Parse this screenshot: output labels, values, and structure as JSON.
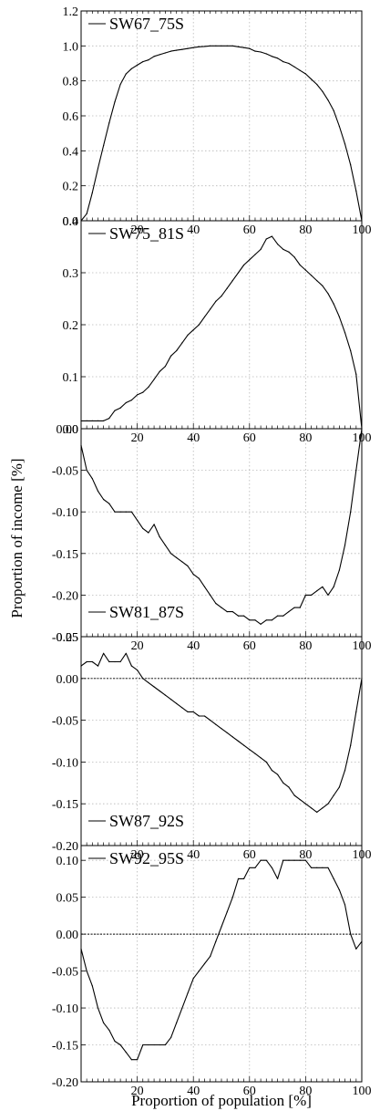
{
  "chart_data": {
    "type": "line",
    "ylabel": "Proportion of income [%]",
    "xlabel": "Proportion of population [%]",
    "xlim": [
      0,
      100
    ],
    "x_ticks": [
      20,
      40,
      60,
      80,
      100
    ],
    "legend_position": "top-left",
    "line_color": "#000000",
    "panels": [
      {
        "series_name": "SW67_75S",
        "ylim": [
          0,
          1.2
        ],
        "y_ticks": [
          0,
          0.2,
          0.4,
          0.6,
          0.8,
          1.0,
          1.2
        ],
        "y_tick_labels": [
          "0.0",
          "0.2",
          "0.4",
          "0.6",
          "0.8",
          "1.0",
          "1.2"
        ],
        "zero_line": false,
        "x": [
          0,
          2,
          4,
          6,
          8,
          10,
          12,
          14,
          16,
          18,
          20,
          22,
          24,
          26,
          28,
          30,
          32,
          34,
          36,
          38,
          40,
          42,
          44,
          46,
          48,
          50,
          52,
          54,
          56,
          58,
          60,
          62,
          64,
          66,
          68,
          70,
          72,
          74,
          76,
          78,
          80,
          82,
          84,
          86,
          88,
          90,
          92,
          94,
          96,
          98,
          100
        ],
        "y": [
          0.0,
          0.04,
          0.16,
          0.3,
          0.43,
          0.56,
          0.68,
          0.78,
          0.84,
          0.87,
          0.89,
          0.91,
          0.92,
          0.94,
          0.95,
          0.96,
          0.97,
          0.975,
          0.98,
          0.985,
          0.99,
          0.995,
          0.997,
          1.0,
          1.0,
          1.0,
          1.0,
          1.0,
          0.995,
          0.99,
          0.985,
          0.97,
          0.965,
          0.955,
          0.94,
          0.93,
          0.91,
          0.9,
          0.88,
          0.86,
          0.84,
          0.81,
          0.78,
          0.74,
          0.69,
          0.63,
          0.54,
          0.44,
          0.32,
          0.17,
          0.0
        ]
      },
      {
        "series_name": "SW75_81S",
        "ylim": [
          0,
          0.4
        ],
        "y_ticks": [
          0,
          0.1,
          0.2,
          0.3,
          0.4
        ],
        "y_tick_labels": [
          "0.0",
          "0.1",
          "0.2",
          "0.3",
          "0.4"
        ],
        "zero_line": false,
        "x": [
          0,
          2,
          4,
          6,
          8,
          10,
          12,
          14,
          16,
          18,
          20,
          22,
          24,
          26,
          28,
          30,
          32,
          34,
          36,
          38,
          40,
          42,
          44,
          46,
          48,
          50,
          52,
          54,
          56,
          58,
          60,
          62,
          64,
          66,
          68,
          70,
          72,
          74,
          76,
          78,
          80,
          82,
          84,
          86,
          88,
          90,
          92,
          94,
          96,
          98,
          100
        ],
        "y": [
          0.015,
          0.015,
          0.015,
          0.015,
          0.015,
          0.02,
          0.035,
          0.04,
          0.05,
          0.055,
          0.065,
          0.07,
          0.08,
          0.095,
          0.11,
          0.12,
          0.14,
          0.15,
          0.165,
          0.18,
          0.19,
          0.2,
          0.215,
          0.23,
          0.245,
          0.255,
          0.27,
          0.285,
          0.3,
          0.315,
          0.325,
          0.335,
          0.345,
          0.365,
          0.37,
          0.355,
          0.345,
          0.34,
          0.33,
          0.315,
          0.305,
          0.295,
          0.285,
          0.275,
          0.26,
          0.24,
          0.215,
          0.185,
          0.15,
          0.105,
          0.0
        ]
      },
      {
        "series_name": "SW81_87S",
        "ylim": [
          -0.25,
          0.0
        ],
        "y_ticks": [
          -0.25,
          -0.2,
          -0.15,
          -0.1,
          -0.05,
          0.0
        ],
        "y_tick_labels": [
          "-0.25",
          "-0.20",
          "-0.15",
          "-0.10",
          "-0.05",
          "0.00"
        ],
        "zero_line": false,
        "x": [
          0,
          2,
          4,
          6,
          8,
          10,
          12,
          14,
          16,
          18,
          20,
          22,
          24,
          26,
          28,
          30,
          32,
          34,
          36,
          38,
          40,
          42,
          44,
          46,
          48,
          50,
          52,
          54,
          56,
          58,
          60,
          62,
          64,
          66,
          68,
          70,
          72,
          74,
          76,
          78,
          80,
          82,
          84,
          86,
          88,
          90,
          92,
          94,
          96,
          98,
          100
        ],
        "y": [
          -0.02,
          -0.05,
          -0.06,
          -0.075,
          -0.085,
          -0.09,
          -0.1,
          -0.1,
          -0.1,
          -0.1,
          -0.11,
          -0.12,
          -0.125,
          -0.115,
          -0.13,
          -0.14,
          -0.15,
          -0.155,
          -0.16,
          -0.165,
          -0.175,
          -0.18,
          -0.19,
          -0.2,
          -0.21,
          -0.215,
          -0.22,
          -0.22,
          -0.225,
          -0.225,
          -0.23,
          -0.23,
          -0.235,
          -0.23,
          -0.23,
          -0.225,
          -0.225,
          -0.22,
          -0.215,
          -0.215,
          -0.2,
          -0.2,
          -0.195,
          -0.19,
          -0.2,
          -0.19,
          -0.17,
          -0.14,
          -0.1,
          -0.05,
          0.0
        ]
      },
      {
        "series_name": "SW87_92S",
        "ylim": [
          -0.2,
          0.05
        ],
        "y_ticks": [
          -0.2,
          -0.15,
          -0.1,
          -0.05,
          0.0,
          0.05
        ],
        "y_tick_labels": [
          "-0.20",
          "-0.15",
          "-0.10",
          "-0.05",
          "0.00",
          "0.05"
        ],
        "zero_line": true,
        "x": [
          0,
          2,
          4,
          6,
          8,
          10,
          12,
          14,
          16,
          18,
          20,
          22,
          24,
          26,
          28,
          30,
          32,
          34,
          36,
          38,
          40,
          42,
          44,
          46,
          48,
          50,
          52,
          54,
          56,
          58,
          60,
          62,
          64,
          66,
          68,
          70,
          72,
          74,
          76,
          78,
          80,
          82,
          84,
          86,
          88,
          90,
          92,
          94,
          96,
          98,
          100
        ],
        "y": [
          0.015,
          0.02,
          0.02,
          0.015,
          0.03,
          0.02,
          0.02,
          0.02,
          0.03,
          0.015,
          0.01,
          0.0,
          -0.005,
          -0.01,
          -0.015,
          -0.02,
          -0.025,
          -0.03,
          -0.035,
          -0.04,
          -0.04,
          -0.045,
          -0.045,
          -0.05,
          -0.055,
          -0.06,
          -0.065,
          -0.07,
          -0.075,
          -0.08,
          -0.085,
          -0.09,
          -0.095,
          -0.1,
          -0.11,
          -0.115,
          -0.125,
          -0.13,
          -0.14,
          -0.145,
          -0.15,
          -0.155,
          -0.16,
          -0.155,
          -0.15,
          -0.14,
          -0.13,
          -0.11,
          -0.08,
          -0.04,
          0.0
        ]
      },
      {
        "series_name": "SW92_95S",
        "ylim": [
          -0.2,
          0.12
        ],
        "y_ticks": [
          -0.2,
          -0.15,
          -0.1,
          -0.05,
          0.0,
          0.05,
          0.1
        ],
        "y_tick_labels": [
          "-0.20",
          "-0.15",
          "-0.10",
          "-0.05",
          "0.00",
          "0.05",
          "0.10"
        ],
        "zero_line": true,
        "x": [
          0,
          2,
          4,
          6,
          8,
          10,
          12,
          14,
          16,
          18,
          20,
          22,
          24,
          26,
          28,
          30,
          32,
          34,
          36,
          38,
          40,
          42,
          44,
          46,
          48,
          50,
          52,
          54,
          56,
          58,
          60,
          62,
          64,
          66,
          68,
          70,
          72,
          74,
          76,
          78,
          80,
          82,
          84,
          86,
          88,
          90,
          92,
          94,
          96,
          98,
          100
        ],
        "y": [
          -0.02,
          -0.05,
          -0.07,
          -0.1,
          -0.12,
          -0.13,
          -0.145,
          -0.15,
          -0.16,
          -0.17,
          -0.17,
          -0.15,
          -0.15,
          -0.15,
          -0.15,
          -0.15,
          -0.14,
          -0.12,
          -0.1,
          -0.08,
          -0.06,
          -0.05,
          -0.04,
          -0.03,
          -0.01,
          0.01,
          0.03,
          0.05,
          0.075,
          0.075,
          0.09,
          0.09,
          0.1,
          0.1,
          0.09,
          0.075,
          0.1,
          0.1,
          0.1,
          0.1,
          0.1,
          0.09,
          0.09,
          0.09,
          0.09,
          0.075,
          0.06,
          0.04,
          0.0,
          -0.02,
          -0.01
        ]
      }
    ]
  }
}
